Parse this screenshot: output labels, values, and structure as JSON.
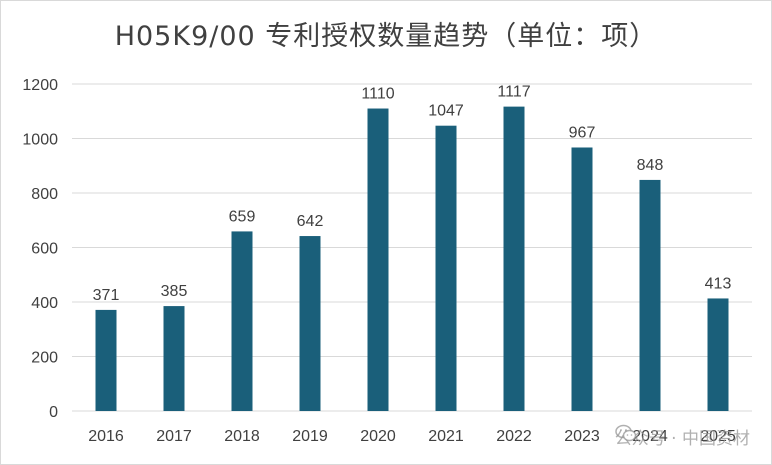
{
  "chart_data": {
    "type": "bar",
    "title": "H05K9/00 专利授权数量趋势（单位：项）",
    "categories": [
      "2016",
      "2017",
      "2018",
      "2019",
      "2020",
      "2021",
      "2022",
      "2023",
      "2024",
      "2025"
    ],
    "values": [
      371,
      385,
      659,
      642,
      1110,
      1047,
      1117,
      967,
      848,
      413
    ],
    "ylim": [
      0,
      1200
    ],
    "yticks": [
      0,
      200,
      400,
      600,
      800,
      1000,
      1200
    ],
    "grid": true,
    "data_labels": true,
    "bar_color": "#1a5f7a"
  },
  "watermark": {
    "icon": "wechat-icon",
    "text": "公众号 · 中国资材"
  }
}
